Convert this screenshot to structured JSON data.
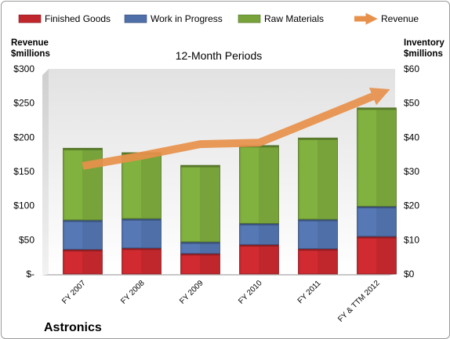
{
  "chart_data": {
    "type": "bar",
    "stacked": true,
    "title": "12-Month Periods",
    "company": "Astronics",
    "categories": [
      "FY 2007",
      "FY 2008",
      "FY 2009",
      "FY 2010",
      "FY 2011",
      "FY & TTM 2012"
    ],
    "left_axis": {
      "title_line1": "Revenue",
      "title_line2": "$millions",
      "ylim": [
        0,
        300
      ],
      "ticks": [
        0,
        50,
        100,
        150,
        200,
        250,
        300
      ],
      "tick_labels": [
        "$-",
        "$50",
        "$100",
        "$150",
        "$200",
        "$250",
        "$300"
      ]
    },
    "right_axis": {
      "title_line1": "Inventory",
      "title_line2": "$millions",
      "ylim": [
        0,
        60
      ],
      "ticks": [
        0,
        10,
        20,
        30,
        40,
        50,
        60
      ],
      "tick_labels": [
        "$0",
        "$10",
        "$20",
        "$30",
        "$40",
        "$50",
        "$60"
      ]
    },
    "series": [
      {
        "name": "Finished Goods",
        "axis": "right",
        "color": "#c0272d",
        "values": [
          7.2,
          7.6,
          6.0,
          8.6,
          7.4,
          11.0
        ]
      },
      {
        "name": "Work in Progress",
        "axis": "right",
        "color": "#4f6fa8",
        "values": [
          8.6,
          8.6,
          3.4,
          6.2,
          8.6,
          8.8
        ]
      },
      {
        "name": "Raw Materials",
        "axis": "right",
        "color": "#77a33a",
        "values": [
          21.0,
          19.3,
          22.4,
          22.8,
          23.8,
          28.8
        ]
      },
      {
        "name": "Revenue",
        "axis": "left",
        "type": "line",
        "color": "#e8914b",
        "values": [
          158,
          173,
          190,
          192,
          227,
          265
        ]
      }
    ],
    "legend_position": "top",
    "grid": false
  }
}
